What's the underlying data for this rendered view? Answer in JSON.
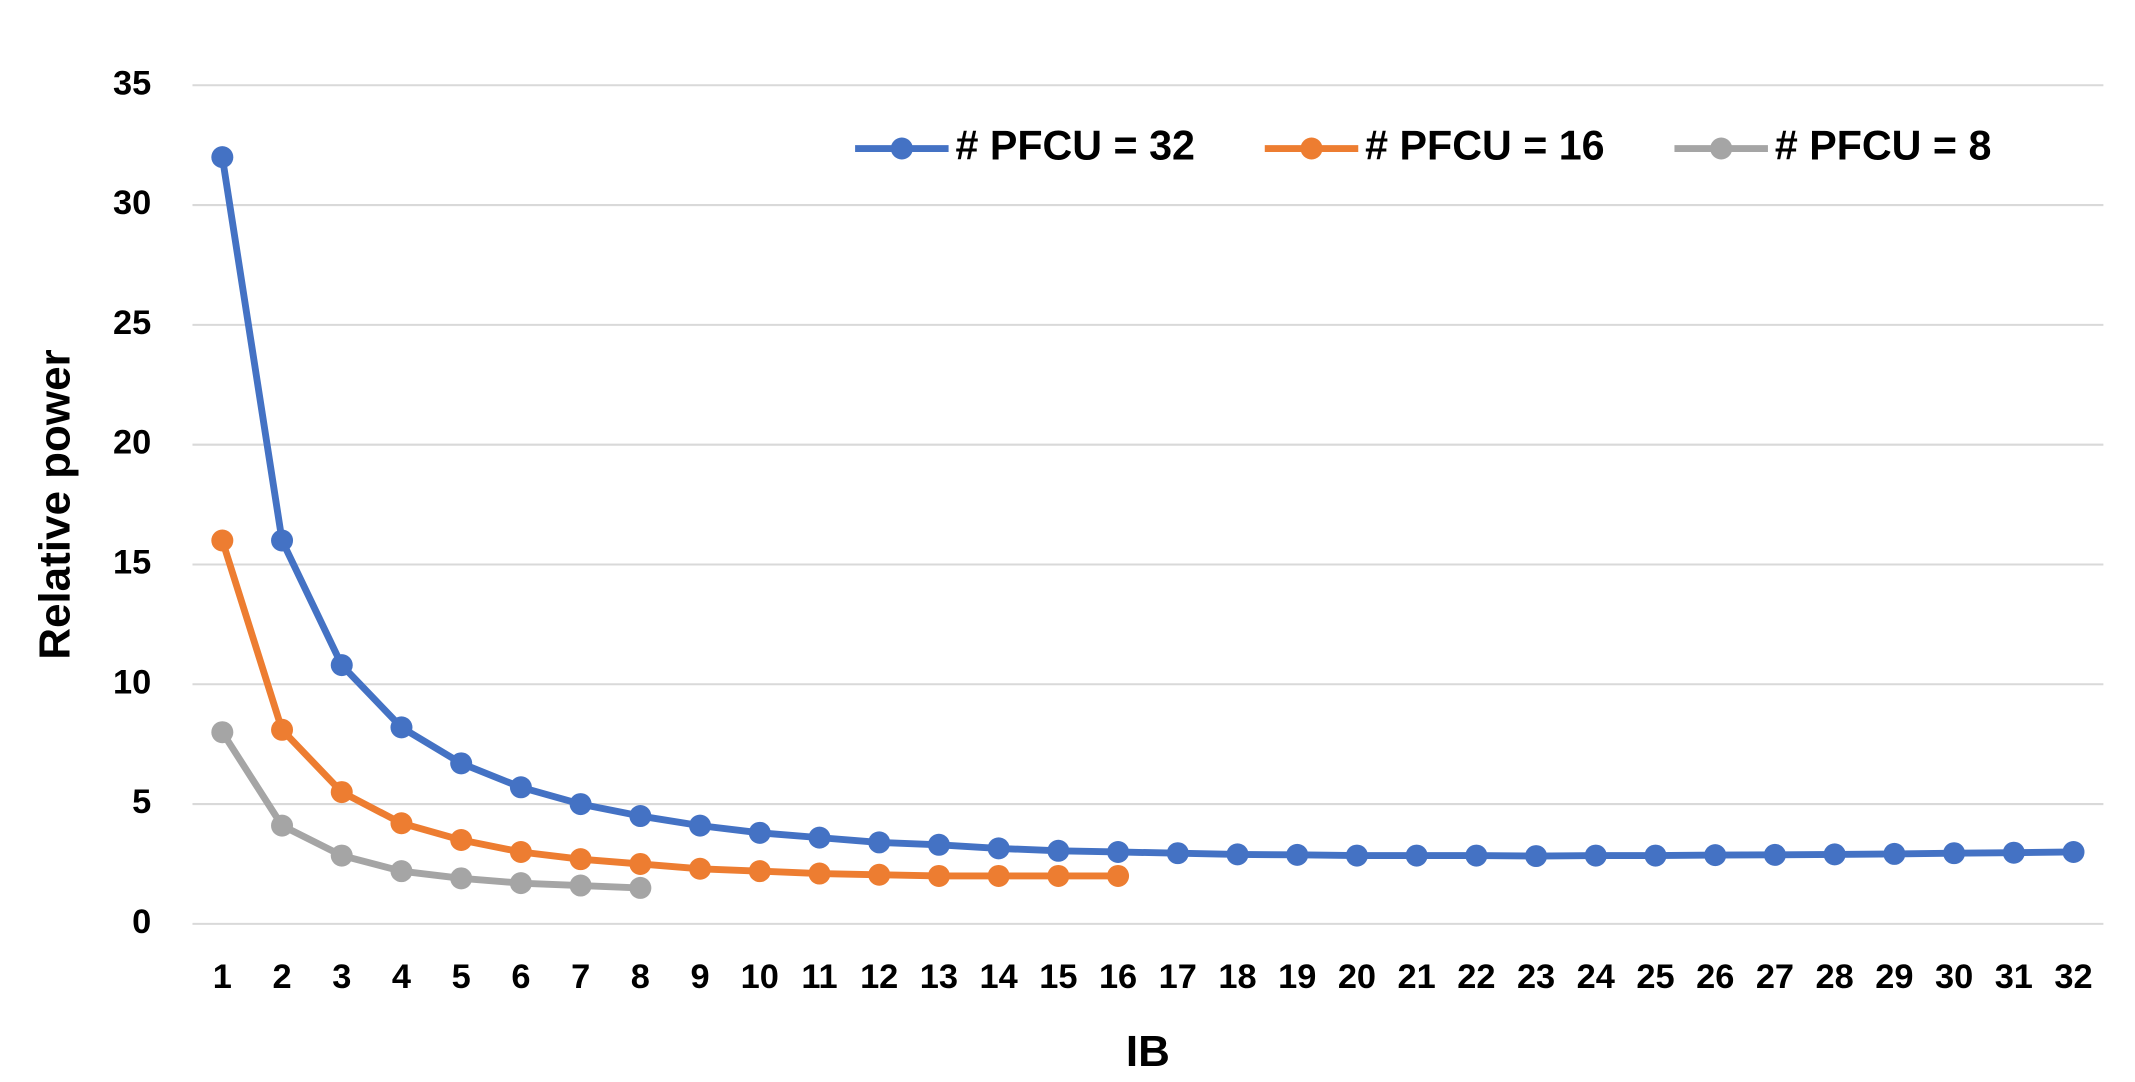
{
  "chart_data": {
    "type": "line",
    "x_label": "IB",
    "y_label": "Relative power",
    "categories": [
      "1",
      "2",
      "3",
      "4",
      "5",
      "6",
      "7",
      "8",
      "9",
      "10",
      "11",
      "12",
      "13",
      "14",
      "15",
      "16",
      "17",
      "18",
      "19",
      "20",
      "21",
      "22",
      "23",
      "24",
      "25",
      "26",
      "27",
      "28",
      "29",
      "30",
      "31",
      "32"
    ],
    "series": [
      {
        "name": "# PFCU = 32",
        "color": "#4472c4",
        "values": [
          32,
          16,
          10.8,
          8.2,
          6.7,
          5.7,
          5.0,
          4.5,
          4.1,
          3.8,
          3.6,
          3.4,
          3.3,
          3.15,
          3.05,
          3.0,
          2.95,
          2.9,
          2.88,
          2.85,
          2.85,
          2.85,
          2.83,
          2.85,
          2.85,
          2.87,
          2.88,
          2.9,
          2.92,
          2.95,
          2.97,
          3.0
        ]
      },
      {
        "name": "# PFCU = 16",
        "color": "#ed7d31",
        "values": [
          16,
          8.1,
          5.5,
          4.2,
          3.5,
          3.0,
          2.7,
          2.5,
          2.3,
          2.2,
          2.1,
          2.05,
          2.0,
          2.0,
          2.0,
          2.0,
          null,
          null,
          null,
          null,
          null,
          null,
          null,
          null,
          null,
          null,
          null,
          null,
          null,
          null,
          null,
          null
        ]
      },
      {
        "name": "# PFCU = 8",
        "color": "#a5a5a5",
        "values": [
          8,
          4.1,
          2.85,
          2.2,
          1.9,
          1.7,
          1.6,
          1.5,
          null,
          null,
          null,
          null,
          null,
          null,
          null,
          null,
          null,
          null,
          null,
          null,
          null,
          null,
          null,
          null,
          null,
          null,
          null,
          null,
          null,
          null,
          null,
          null
        ]
      }
    ],
    "ylim": [
      0,
      35
    ],
    "yticks": [
      0,
      5,
      10,
      15,
      20,
      25,
      30,
      35
    ],
    "grid": true,
    "legend": "top"
  }
}
